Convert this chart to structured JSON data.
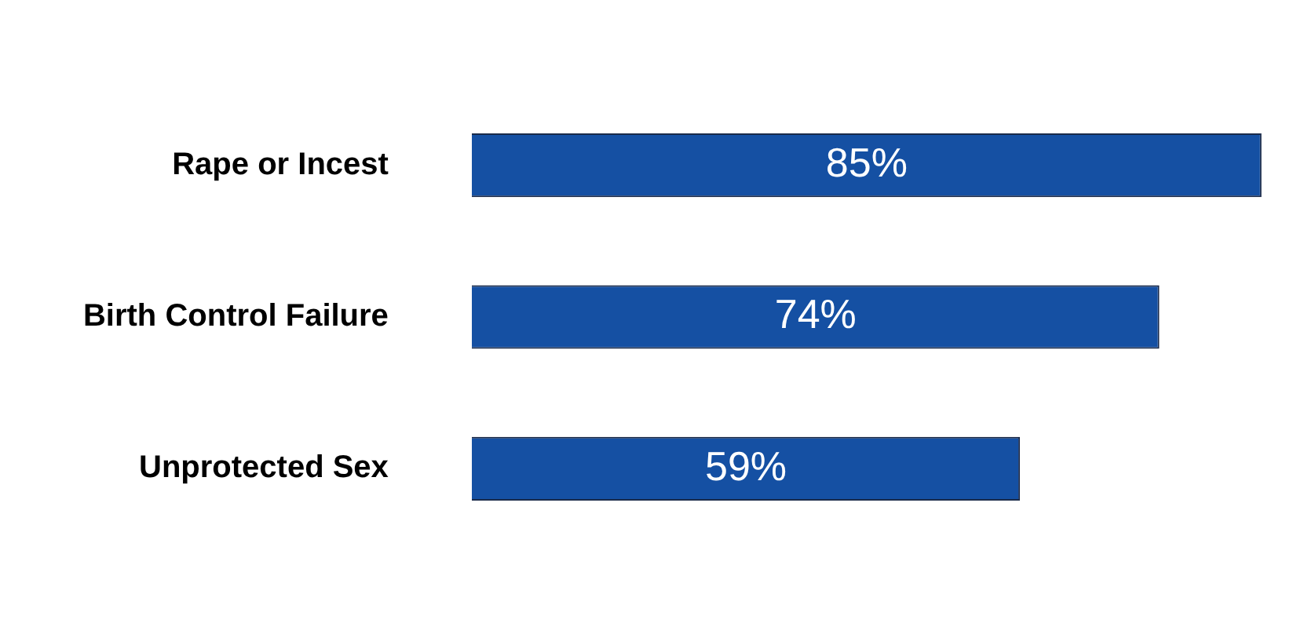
{
  "chart_data": {
    "type": "bar",
    "orientation": "horizontal",
    "categories": [
      "Rape or Incest",
      "Birth Control Failure",
      "Unprotected Sex"
    ],
    "values": [
      85,
      74,
      59
    ],
    "value_labels": [
      "85%",
      "74%",
      "59%"
    ],
    "color": "#1550a3"
  }
}
